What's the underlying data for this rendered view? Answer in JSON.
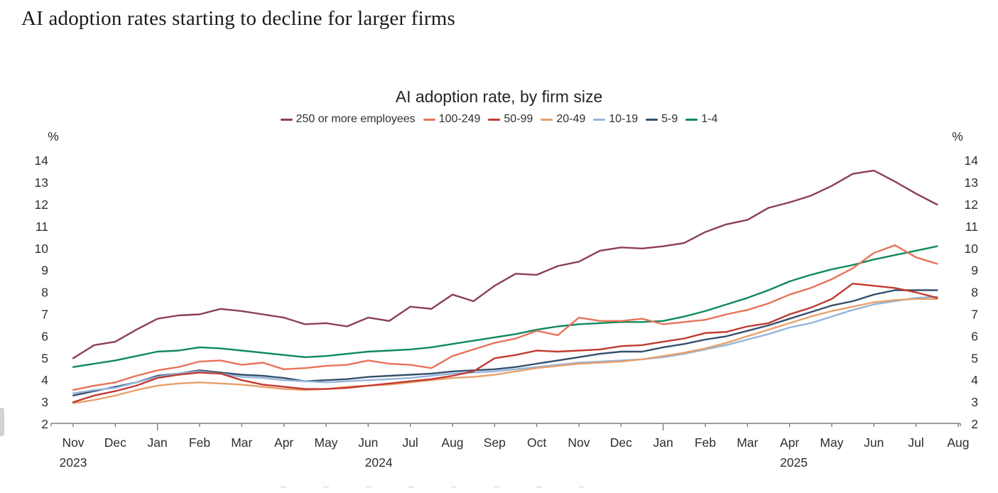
{
  "page": {
    "title": "AI adoption rates starting to decline for larger firms"
  },
  "chart_data": {
    "type": "line",
    "title": "AI adoption rate, by firm size",
    "legend_position": "top-center",
    "grid": false,
    "y_axis": {
      "unit_label": "%",
      "min": 2,
      "max": 14,
      "tick_step": 1,
      "shown_on_both_sides": true
    },
    "x_axis": {
      "start": "Nov 2023",
      "end": "Aug 2025",
      "month_labels": [
        "Nov",
        "Dec",
        "Jan",
        "Feb",
        "Mar",
        "Apr",
        "May",
        "Jun",
        "Jul",
        "Aug",
        "Sep",
        "Oct",
        "Nov",
        "Dec",
        "Jan",
        "Feb",
        "Mar",
        "Apr",
        "May",
        "Jun",
        "Jul",
        "Aug"
      ],
      "year_labels": [
        {
          "label": "2023",
          "at_month": 0
        },
        {
          "label": "2024",
          "at_month": 7.25
        },
        {
          "label": "2025",
          "at_month": 17.1
        }
      ]
    },
    "points_per_month": 2,
    "series": [
      {
        "name": "250 or more employees",
        "color": "#8c3f54",
        "values": [
          5.0,
          5.6,
          5.75,
          6.3,
          6.8,
          6.95,
          7.0,
          7.25,
          7.15,
          7.0,
          6.85,
          6.55,
          6.6,
          6.45,
          6.85,
          6.7,
          7.35,
          7.25,
          7.9,
          7.6,
          8.3,
          8.85,
          8.8,
          9.2,
          9.4,
          9.9,
          10.05,
          10.0,
          10.1,
          10.25,
          10.75,
          11.1,
          11.3,
          11.85,
          12.1,
          12.4,
          12.85,
          13.4,
          13.55,
          13.05,
          12.5,
          12.0
        ]
      },
      {
        "name": "100-249",
        "color": "#e8735a",
        "values": [
          3.55,
          3.75,
          3.9,
          4.2,
          4.45,
          4.6,
          4.85,
          4.9,
          4.7,
          4.8,
          4.5,
          4.55,
          4.65,
          4.7,
          4.9,
          4.75,
          4.7,
          4.55,
          5.1,
          5.4,
          5.7,
          5.9,
          6.25,
          6.05,
          6.85,
          6.7,
          6.7,
          6.8,
          6.55,
          6.65,
          6.75,
          7.0,
          7.2,
          7.5,
          7.9,
          8.2,
          8.6,
          9.1,
          9.8,
          10.15,
          9.6,
          9.3
        ]
      },
      {
        "name": "50-99",
        "color": "#c13b31",
        "values": [
          3.0,
          3.3,
          3.5,
          3.75,
          4.1,
          4.25,
          4.35,
          4.3,
          4.0,
          3.8,
          3.7,
          3.6,
          3.6,
          3.65,
          3.75,
          3.85,
          3.95,
          4.05,
          4.2,
          4.4,
          5.0,
          5.15,
          5.35,
          5.3,
          5.35,
          5.4,
          5.55,
          5.6,
          5.75,
          5.9,
          6.15,
          6.2,
          6.45,
          6.6,
          7.0,
          7.3,
          7.7,
          8.4,
          8.3,
          8.2,
          8.0,
          7.75
        ]
      },
      {
        "name": "20-49",
        "color": "#e9a06b",
        "values": [
          2.95,
          3.1,
          3.3,
          3.55,
          3.75,
          3.85,
          3.9,
          3.85,
          3.8,
          3.7,
          3.6,
          3.55,
          3.6,
          3.7,
          3.75,
          3.8,
          3.9,
          4.0,
          4.1,
          4.15,
          4.25,
          4.4,
          4.55,
          4.65,
          4.75,
          4.8,
          4.85,
          4.95,
          5.1,
          5.25,
          5.45,
          5.7,
          6.0,
          6.3,
          6.6,
          6.9,
          7.15,
          7.35,
          7.55,
          7.65,
          7.7,
          7.7
        ]
      },
      {
        "name": "10-19",
        "color": "#94b5dc",
        "values": [
          3.4,
          3.55,
          3.65,
          3.9,
          4.15,
          4.3,
          4.4,
          4.3,
          4.15,
          4.1,
          4.0,
          3.95,
          3.9,
          3.95,
          4.0,
          4.05,
          4.1,
          4.2,
          4.3,
          4.35,
          4.4,
          4.5,
          4.6,
          4.7,
          4.8,
          4.85,
          4.9,
          4.95,
          5.05,
          5.2,
          5.4,
          5.6,
          5.85,
          6.1,
          6.4,
          6.6,
          6.9,
          7.2,
          7.45,
          7.6,
          7.75,
          7.8
        ]
      },
      {
        "name": "5-9",
        "color": "#35506e",
        "values": [
          3.3,
          3.5,
          3.7,
          3.9,
          4.2,
          4.3,
          4.45,
          4.35,
          4.25,
          4.2,
          4.1,
          3.95,
          4.0,
          4.05,
          4.15,
          4.2,
          4.25,
          4.3,
          4.4,
          4.45,
          4.5,
          4.6,
          4.75,
          4.9,
          5.05,
          5.2,
          5.3,
          5.3,
          5.5,
          5.65,
          5.85,
          6.0,
          6.25,
          6.5,
          6.8,
          7.1,
          7.4,
          7.6,
          7.9,
          8.1,
          8.1,
          8.1
        ]
      },
      {
        "name": "1-4",
        "color": "#10895c",
        "values": [
          4.6,
          4.75,
          4.9,
          5.1,
          5.3,
          5.35,
          5.5,
          5.45,
          5.35,
          5.25,
          5.15,
          5.05,
          5.1,
          5.2,
          5.3,
          5.35,
          5.4,
          5.5,
          5.65,
          5.8,
          5.95,
          6.1,
          6.3,
          6.45,
          6.55,
          6.6,
          6.65,
          6.65,
          6.7,
          6.9,
          7.15,
          7.45,
          7.75,
          8.1,
          8.5,
          8.8,
          9.05,
          9.25,
          9.5,
          9.7,
          9.9,
          10.1
        ]
      }
    ]
  }
}
